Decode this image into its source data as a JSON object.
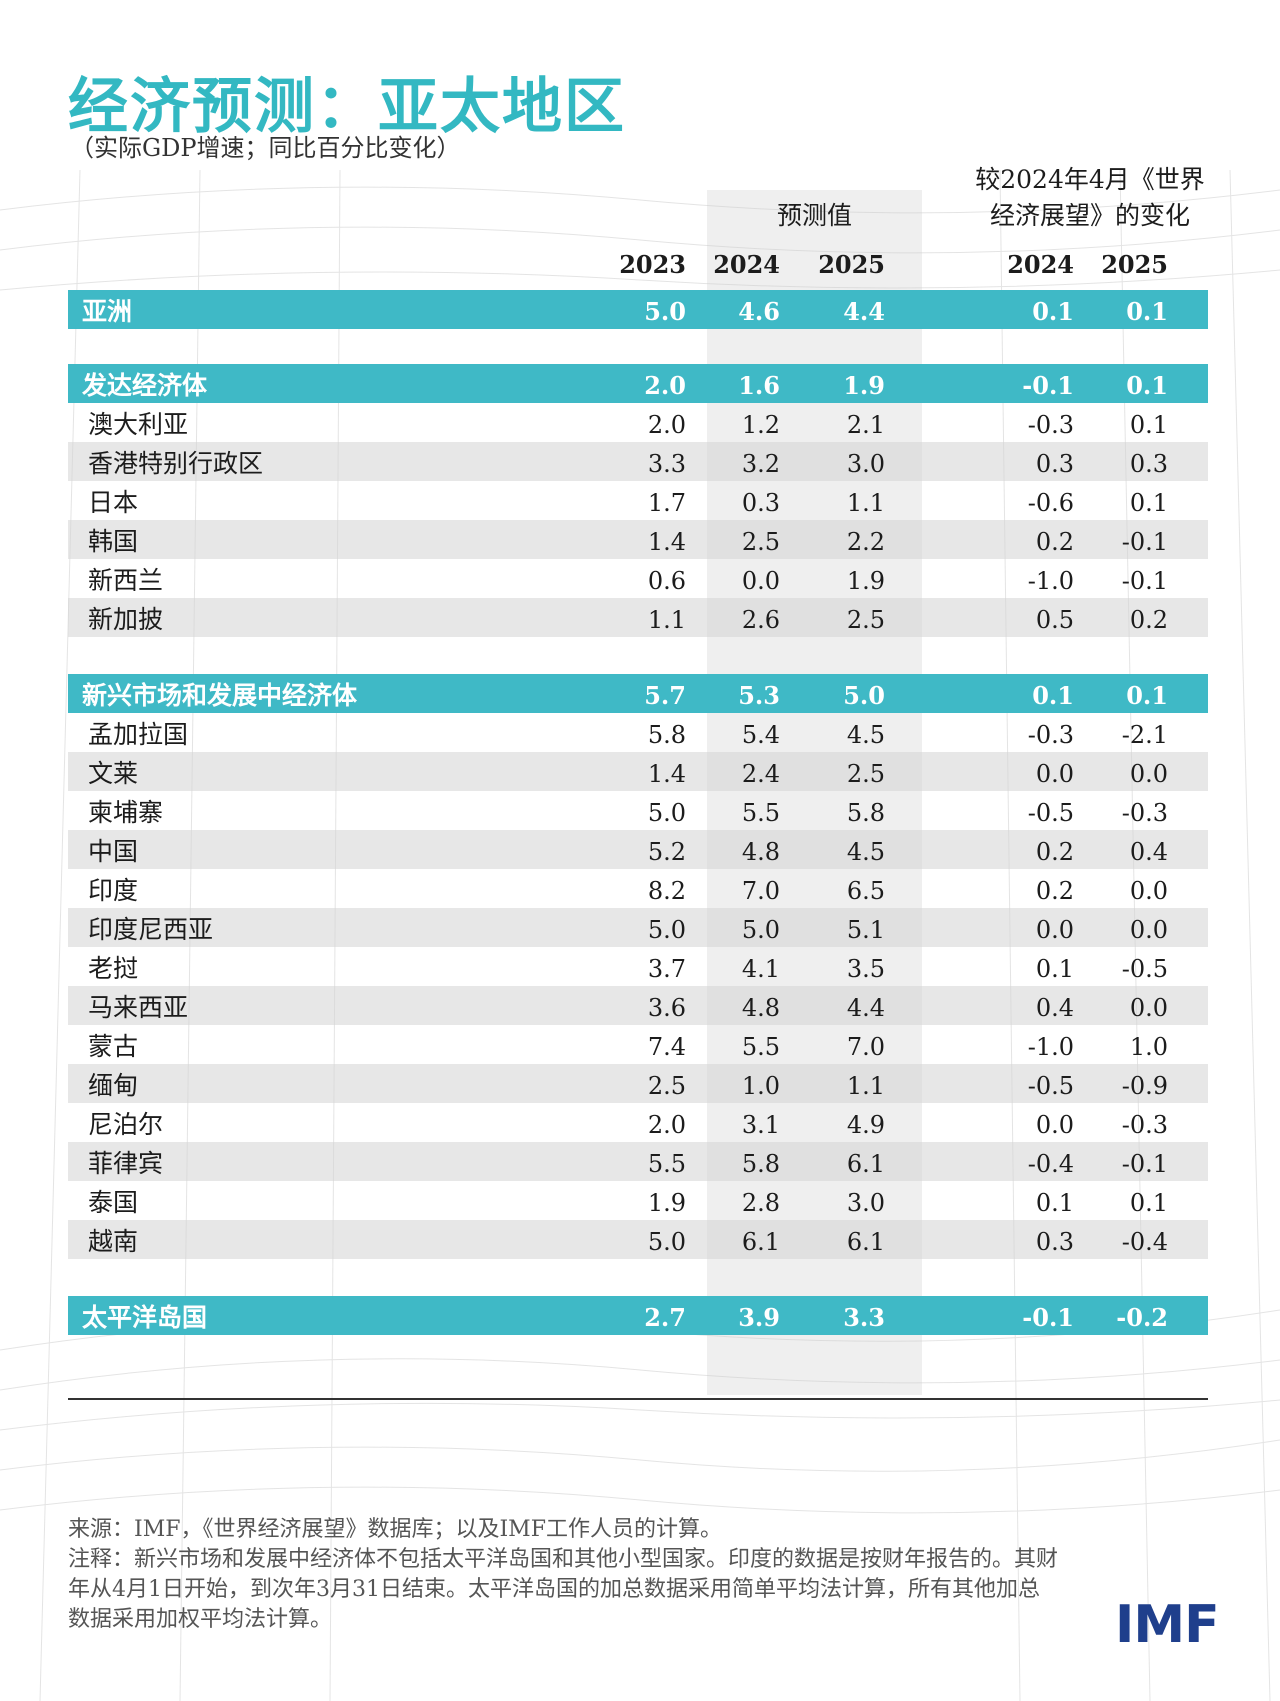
{
  "title": "经济预测：亚太地区",
  "subtitle": "（实际GDP增速；同比百分比变化）",
  "headers": {
    "forecast": "预测值",
    "change_line1": "较2024年4月《世界",
    "change_line2": "经济展望》的变化",
    "years": [
      "2023",
      "2024",
      "2025",
      "2024",
      "2025"
    ]
  },
  "sections": [
    {
      "group": {
        "name": "亚洲",
        "values": [
          "5.0",
          "4.6",
          "4.4",
          "0.1",
          "0.1"
        ]
      },
      "rows": []
    },
    {
      "group": {
        "name": "发达经济体",
        "values": [
          "2.0",
          "1.6",
          "1.9",
          "-0.1",
          "0.1"
        ]
      },
      "rows": [
        {
          "name": "澳大利亚",
          "values": [
            "2.0",
            "1.2",
            "2.1",
            "-0.3",
            "0.1"
          ]
        },
        {
          "name": "香港特别行政区",
          "values": [
            "3.3",
            "3.2",
            "3.0",
            "0.3",
            "0.3"
          ]
        },
        {
          "name": "日本",
          "values": [
            "1.7",
            "0.3",
            "1.1",
            "-0.6",
            "0.1"
          ]
        },
        {
          "name": "韩国",
          "values": [
            "1.4",
            "2.5",
            "2.2",
            "0.2",
            "-0.1"
          ]
        },
        {
          "name": "新西兰",
          "values": [
            "0.6",
            "0.0",
            "1.9",
            "-1.0",
            "-0.1"
          ]
        },
        {
          "name": "新加披",
          "values": [
            "1.1",
            "2.6",
            "2.5",
            "0.5",
            "0.2"
          ]
        }
      ]
    },
    {
      "group": {
        "name": "新兴市场和发展中经济体",
        "values": [
          "5.7",
          "5.3",
          "5.0",
          "0.1",
          "0.1"
        ]
      },
      "rows": [
        {
          "name": "孟加拉国",
          "values": [
            "5.8",
            "5.4",
            "4.5",
            "-0.3",
            "-2.1"
          ]
        },
        {
          "name": "文莱",
          "values": [
            "1.4",
            "2.4",
            "2.5",
            "0.0",
            "0.0"
          ]
        },
        {
          "name": "柬埔寨",
          "values": [
            "5.0",
            "5.5",
            "5.8",
            "-0.5",
            "-0.3"
          ]
        },
        {
          "name": "中国",
          "values": [
            "5.2",
            "4.8",
            "4.5",
            "0.2",
            "0.4"
          ]
        },
        {
          "name": "印度",
          "values": [
            "8.2",
            "7.0",
            "6.5",
            "0.2",
            "0.0"
          ]
        },
        {
          "name": "印度尼西亚",
          "values": [
            "5.0",
            "5.0",
            "5.1",
            "0.0",
            "0.0"
          ]
        },
        {
          "name": "老挝",
          "values": [
            "3.7",
            "4.1",
            "3.5",
            "0.1",
            "-0.5"
          ]
        },
        {
          "name": "马来西亚",
          "values": [
            "3.6",
            "4.8",
            "4.4",
            "0.4",
            "0.0"
          ]
        },
        {
          "name": "蒙古",
          "values": [
            "7.4",
            "5.5",
            "7.0",
            "-1.0",
            "1.0"
          ]
        },
        {
          "name": "缅甸",
          "values": [
            "2.5",
            "1.0",
            "1.1",
            "-0.5",
            "-0.9"
          ]
        },
        {
          "name": "尼泊尔",
          "values": [
            "2.0",
            "3.1",
            "4.9",
            "0.0",
            "-0.3"
          ]
        },
        {
          "name": "菲律宾",
          "values": [
            "5.5",
            "5.8",
            "6.1",
            "-0.4",
            "-0.1"
          ]
        },
        {
          "name": "泰国",
          "values": [
            "1.9",
            "2.8",
            "3.0",
            "0.1",
            "0.1"
          ]
        },
        {
          "name": "越南",
          "values": [
            "5.0",
            "6.1",
            "6.1",
            "0.3",
            "-0.4"
          ]
        }
      ]
    },
    {
      "group": {
        "name": "太平洋岛国",
        "values": [
          "2.7",
          "3.9",
          "3.3",
          "-0.1",
          "-0.2"
        ]
      },
      "rows": []
    }
  ],
  "footnotes": {
    "source": "来源：IMF，《世界经济展望》数据库；以及IMF工作人员的计算。",
    "note": "注释：新兴市场和发展中经济体不包括太平洋岛国和其他小型国家。印度的数据是按财年报告的。其财年从4月1日开始，到次年3月31日结束。太平洋岛国的加总数据采用简单平均法计算，所有其他加总数据采用加权平均法计算。"
  },
  "logo": "IMF",
  "colors": {
    "accent": "#33b8c2",
    "group_row": "#3fb9c6",
    "logo": "#1f3f8c"
  }
}
